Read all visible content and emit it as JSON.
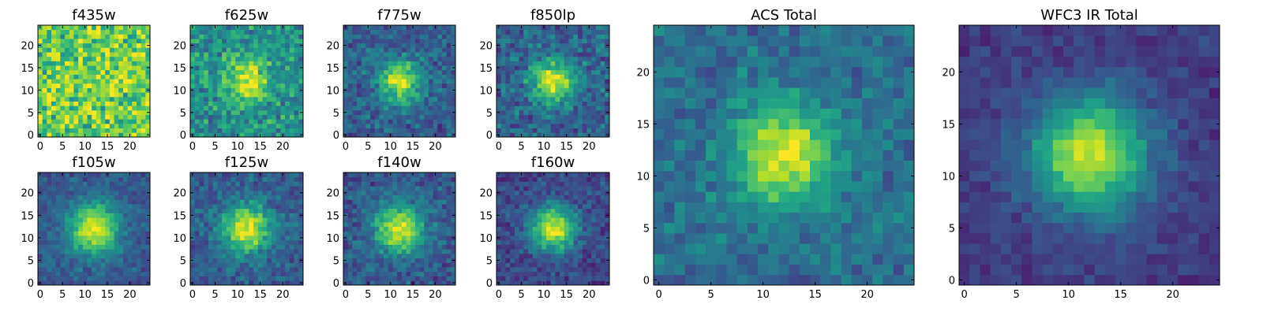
{
  "chart_data": [
    {
      "type": "heatmap",
      "title": "f435w",
      "colormap": "viridis",
      "xlim": [
        0,
        24
      ],
      "ylim": [
        0,
        24
      ],
      "xticks": [
        0,
        5,
        10,
        15,
        20
      ],
      "yticks": [
        0,
        5,
        10,
        15,
        20
      ],
      "grid": false,
      "peak": [
        12,
        12
      ],
      "sigma": 3.5,
      "peak_level": 0.0,
      "background": 0.78,
      "noise": 0.34,
      "seed": 11
    },
    {
      "type": "heatmap",
      "title": "f625w",
      "colormap": "viridis",
      "xlim": [
        0,
        24
      ],
      "ylim": [
        0,
        24
      ],
      "xticks": [
        0,
        5,
        10,
        15,
        20
      ],
      "yticks": [
        0,
        5,
        10,
        15,
        20
      ],
      "grid": false,
      "peak": [
        12,
        12
      ],
      "sigma": 3.6,
      "peak_level": 0.42,
      "background": 0.5,
      "noise": 0.26,
      "seed": 23
    },
    {
      "type": "heatmap",
      "title": "f775w",
      "colormap": "viridis",
      "xlim": [
        0,
        24
      ],
      "ylim": [
        0,
        24
      ],
      "xticks": [
        0,
        5,
        10,
        15,
        20
      ],
      "yticks": [
        0,
        5,
        10,
        15,
        20
      ],
      "grid": false,
      "peak": [
        12,
        12
      ],
      "sigma": 3.4,
      "peak_level": 0.62,
      "background": 0.3,
      "noise": 0.2,
      "seed": 37
    },
    {
      "type": "heatmap",
      "title": "f850lp",
      "colormap": "viridis",
      "xlim": [
        0,
        24
      ],
      "ylim": [
        0,
        24
      ],
      "xticks": [
        0,
        5,
        10,
        15,
        20
      ],
      "yticks": [
        0,
        5,
        10,
        15,
        20
      ],
      "grid": false,
      "peak": [
        12,
        12
      ],
      "sigma": 3.4,
      "peak_level": 0.6,
      "background": 0.32,
      "noise": 0.22,
      "seed": 41
    },
    {
      "type": "heatmap",
      "title": "f105w",
      "colormap": "viridis",
      "xlim": [
        0,
        24
      ],
      "ylim": [
        0,
        24
      ],
      "xticks": [
        0,
        5,
        10,
        15,
        20
      ],
      "yticks": [
        0,
        5,
        10,
        15,
        20
      ],
      "grid": false,
      "peak": [
        12,
        12
      ],
      "sigma": 4.0,
      "peak_level": 0.68,
      "background": 0.28,
      "noise": 0.14,
      "seed": 53
    },
    {
      "type": "heatmap",
      "title": "f125w",
      "colormap": "viridis",
      "xlim": [
        0,
        24
      ],
      "ylim": [
        0,
        24
      ],
      "xticks": [
        0,
        5,
        10,
        15,
        20
      ],
      "yticks": [
        0,
        5,
        10,
        15,
        20
      ],
      "grid": false,
      "peak": [
        12,
        12
      ],
      "sigma": 3.8,
      "peak_level": 0.66,
      "background": 0.3,
      "noise": 0.16,
      "seed": 67
    },
    {
      "type": "heatmap",
      "title": "f140w",
      "colormap": "viridis",
      "xlim": [
        0,
        24
      ],
      "ylim": [
        0,
        24
      ],
      "xticks": [
        0,
        5,
        10,
        15,
        20
      ],
      "yticks": [
        0,
        5,
        10,
        15,
        20
      ],
      "grid": false,
      "peak": [
        12,
        12
      ],
      "sigma": 3.8,
      "peak_level": 0.66,
      "background": 0.28,
      "noise": 0.18,
      "seed": 71
    },
    {
      "type": "heatmap",
      "title": "f160w",
      "colormap": "viridis",
      "xlim": [
        0,
        24
      ],
      "ylim": [
        0,
        24
      ],
      "xticks": [
        0,
        5,
        10,
        15,
        20
      ],
      "yticks": [
        0,
        5,
        10,
        15,
        20
      ],
      "grid": false,
      "peak": [
        12,
        12
      ],
      "sigma": 3.5,
      "peak_level": 0.72,
      "background": 0.22,
      "noise": 0.16,
      "seed": 83
    },
    {
      "type": "heatmap",
      "title": "ACS Total",
      "colormap": "viridis",
      "xlim": [
        0,
        24
      ],
      "ylim": [
        0,
        24
      ],
      "xticks": [
        0,
        5,
        10,
        15,
        20
      ],
      "yticks": [
        0,
        5,
        10,
        15,
        20
      ],
      "grid": false,
      "peak": [
        12,
        12
      ],
      "sigma": 3.4,
      "peak_level": 0.6,
      "background": 0.36,
      "noise": 0.16,
      "seed": 97
    },
    {
      "type": "heatmap",
      "title": "WFC3 IR Total",
      "colormap": "viridis",
      "xlim": [
        0,
        24
      ],
      "ylim": [
        0,
        24
      ],
      "xticks": [
        0,
        5,
        10,
        15,
        20
      ],
      "yticks": [
        0,
        5,
        10,
        15,
        20
      ],
      "grid": false,
      "peak": [
        12,
        12
      ],
      "sigma": 3.9,
      "peak_level": 0.74,
      "background": 0.18,
      "noise": 0.1,
      "seed": 101
    }
  ]
}
